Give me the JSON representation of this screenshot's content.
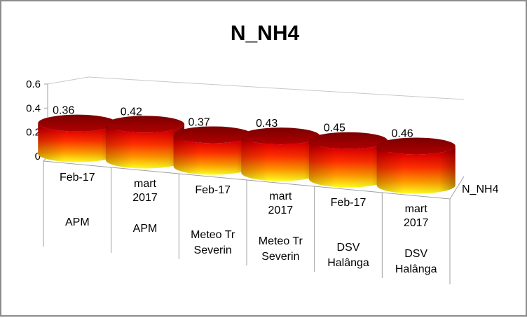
{
  "chart_data": {
    "type": "bar",
    "title": "N_NH4",
    "categories": [
      [
        "Feb-17",
        "",
        "APM"
      ],
      [
        "mart",
        "2017",
        "APM"
      ],
      [
        "Feb-17",
        "",
        "Meteo Tr",
        "Severin"
      ],
      [
        "mart",
        "2017",
        "Meteo Tr",
        "Severin"
      ],
      [
        "Feb-17",
        "",
        "DSV",
        "Halânga"
      ],
      [
        "mart",
        "2017",
        "DSV",
        "Halânga"
      ]
    ],
    "series": [
      {
        "name": "N_NH4",
        "values": [
          0.36,
          0.42,
          0.37,
          0.43,
          0.45,
          0.46
        ]
      }
    ],
    "data_labels": [
      "0.36",
      "0.42",
      "0.37",
      "0.43",
      "0.45",
      "0.46"
    ],
    "y_ticks": [
      "0",
      "0.2",
      "0.4",
      "0.6"
    ],
    "ylim": [
      0,
      0.6
    ],
    "legend_label": "N_NH4",
    "legend_position": "right",
    "bar_shape": "3d-cylinder",
    "colors": {
      "cyl_top": "#8b0000",
      "cyl_mid": "#ff2a00",
      "cyl_bottom": "#ffff00",
      "border": "#8c8c8c"
    }
  }
}
